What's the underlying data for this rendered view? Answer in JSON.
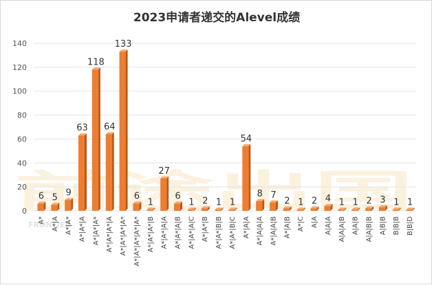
{
  "chart_data": {
    "type": "bar",
    "title": "2023申请者递交的Alevel成绩",
    "xlabel": "",
    "ylabel": "",
    "ylim": [
      0,
      140
    ],
    "yticks": [
      0,
      20,
      40,
      60,
      80,
      100,
      120,
      140
    ],
    "grid": true,
    "legend": "none",
    "bar_color": "#ED7D31",
    "categories": [
      "A*",
      "A*|A",
      "A*|A*",
      "A*|A*|A",
      "A*|A*|A*",
      "A*|A*|A*|A",
      "A*|A*|A*|A*",
      "A*|A*|A*|A*|A*",
      "A*|A*|A*|B",
      "A*|A*|A|A",
      "A*|A*|A|B",
      "A*|A*|A|C",
      "A*|A*|B",
      "A*|A*|B|B",
      "A*|A*|B|C",
      "A*|A|A",
      "A*|A|A|A",
      "A*|A|A|B",
      "A*|A|B",
      "A*|C",
      "A|A",
      "A|A|A",
      "A|A|A|B",
      "A|A|B",
      "A|A|B|B",
      "A|B|B",
      "B|B|B",
      "B|B|D"
    ],
    "values": [
      6,
      5,
      9,
      63,
      118,
      64,
      133,
      6,
      1,
      27,
      6,
      1,
      2,
      1,
      1,
      54,
      8,
      7,
      2,
      1,
      2,
      4,
      1,
      1,
      2,
      3,
      1,
      1
    ]
  },
  "watermark": {
    "text": "前途出国",
    "sub": "FRONTIER"
  }
}
